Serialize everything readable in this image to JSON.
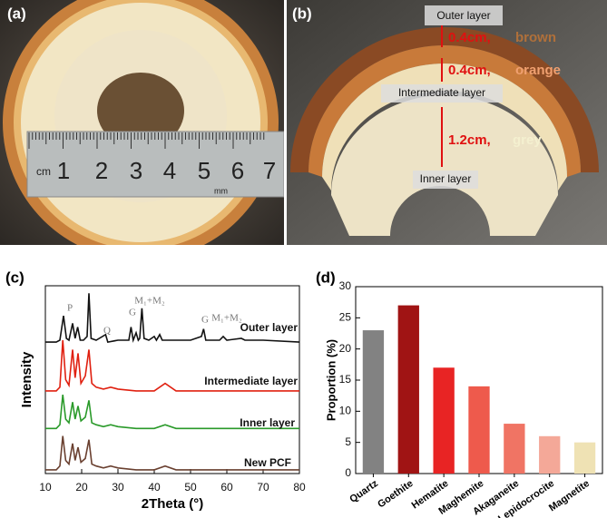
{
  "photos": {
    "a": {
      "panel_label": "(a)",
      "ruler_labels": [
        "cm",
        "1",
        "2",
        "3",
        "4",
        "5",
        "6",
        "7"
      ],
      "unit_label": "mm"
    },
    "b": {
      "panel_label": "(b)",
      "outer": "Outer layer",
      "brown_size": "0.4cm,",
      "brown": "brown",
      "orange_size": "0.4cm,",
      "orange": "orange",
      "intermediate": "Intermediate layer",
      "grey_size": "1.2cm,",
      "grey": "grey",
      "inner": "Inner layer"
    }
  },
  "chart_data": [
    {
      "type": "line",
      "panel_label": "(c)",
      "xlabel": "2Theta (°)",
      "ylabel": "Intensity",
      "xlim": [
        10,
        80
      ],
      "xticks": [
        10,
        20,
        30,
        40,
        50,
        60,
        70,
        80
      ],
      "ylim": [
        0,
        100
      ],
      "annotations": [
        "P",
        "Q",
        "G",
        "M₁+M₂",
        "G",
        "M₁+M₂"
      ],
      "series": [
        {
          "name": "Outer layer",
          "color": "#111111",
          "x": [
            10,
            13,
            14,
            15,
            15.8,
            16.5,
            17.5,
            18.2,
            18.9,
            19.6,
            20.5,
            21.5,
            22,
            22.6,
            24,
            26.6,
            27.2,
            30,
            33,
            33.6,
            34.2,
            35,
            35.6,
            36,
            36.6,
            37.2,
            38.5,
            40,
            40.6,
            41.5,
            42.2,
            45,
            50,
            53,
            53.6,
            54.2,
            55,
            58,
            59,
            60,
            64,
            65,
            70,
            80
          ],
          "values": [
            70,
            70,
            71,
            84,
            72,
            71,
            80,
            72,
            78,
            71,
            71,
            73,
            96,
            72,
            71,
            74,
            70,
            71,
            71,
            78,
            71,
            75,
            71,
            72,
            88,
            72,
            71,
            73,
            71,
            74,
            71,
            71,
            71,
            73,
            77,
            71,
            71,
            71,
            73,
            71,
            72,
            71,
            71,
            70
          ]
        },
        {
          "name": "Intermediate  layer",
          "color": "#e02010",
          "x": [
            10,
            13,
            14,
            14.8,
            15.6,
            16.5,
            17.5,
            18.2,
            19,
            19.8,
            21,
            22,
            22.8,
            24,
            26,
            28,
            30,
            35,
            40,
            43,
            46,
            50,
            60,
            70,
            80
          ],
          "values": [
            44,
            44,
            46,
            71,
            50,
            47,
            66,
            51,
            64,
            48,
            52,
            66,
            48,
            46,
            45,
            46,
            45,
            44,
            44,
            48,
            44,
            44,
            44,
            44,
            44
          ]
        },
        {
          "name": "Inner layer",
          "color": "#2a9a2a",
          "x": [
            10,
            13,
            14,
            14.8,
            15.6,
            16.5,
            17.5,
            18.2,
            19,
            19.8,
            21,
            22,
            22.8,
            24,
            26,
            28,
            30,
            35,
            40,
            43,
            46,
            50,
            60,
            70,
            80
          ],
          "values": [
            24,
            24,
            26,
            42,
            29,
            27,
            38,
            29,
            36,
            28,
            30,
            39,
            27,
            26,
            25,
            26,
            25,
            24,
            24,
            26,
            24,
            24,
            24,
            24,
            24
          ]
        },
        {
          "name": "New PCF",
          "color": "#6a4030",
          "x": [
            10,
            13,
            14,
            14.8,
            15.6,
            16.5,
            17.5,
            18.2,
            19,
            19.8,
            21,
            22,
            22.8,
            24,
            26,
            28,
            30,
            35,
            40,
            43,
            46,
            50,
            60,
            70,
            80
          ],
          "values": [
            2,
            2,
            4,
            20,
            7,
            5,
            16,
            7,
            14,
            6,
            8,
            18,
            5,
            4,
            3,
            4,
            3,
            2,
            2,
            4,
            2,
            2,
            2,
            2,
            2
          ]
        }
      ]
    },
    {
      "type": "bar",
      "panel_label": "(d)",
      "ylabel": "Proportion (%)",
      "categories": [
        "Quartz",
        "Goethite",
        "Hematite",
        "Maghemite",
        "Akaganeite",
        "Lepidocrocite",
        "Magnetite"
      ],
      "values": [
        23,
        27,
        17,
        14,
        8,
        6,
        5
      ],
      "colors": [
        "#828282",
        "#a01414",
        "#e82424",
        "#ee5a4c",
        "#f07464",
        "#f4a898",
        "#efe2b4"
      ],
      "ylim": [
        0,
        30
      ],
      "yticks": [
        0,
        5,
        10,
        15,
        20,
        25,
        30
      ]
    }
  ]
}
